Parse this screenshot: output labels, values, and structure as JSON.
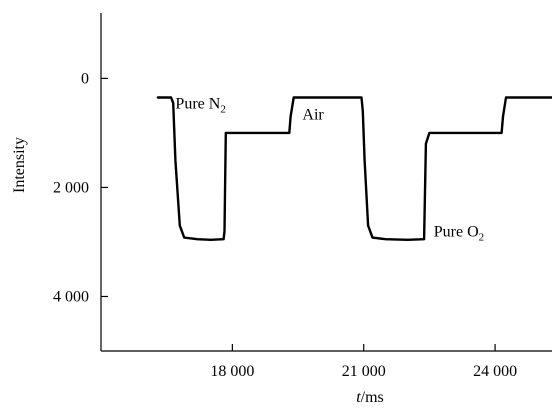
{
  "chart_data": {
    "type": "line",
    "title": "",
    "xlabel_italic": "t",
    "xlabel_unit": "/ms",
    "ylabel": "Intensity",
    "xlim": [
      15000,
      25300
    ],
    "ylim": [
      -1200,
      5000
    ],
    "y_inverted": true,
    "xticks": [
      18000,
      21000,
      24000
    ],
    "xtick_labels": [
      "18 000",
      "21 000",
      "24 000"
    ],
    "yticks": [
      0,
      2000,
      4000
    ],
    "ytick_labels": [
      "0",
      "2 000",
      "4 000"
    ],
    "grid": false,
    "legend": "none",
    "line_color": "#000000",
    "series": [
      {
        "x": [
          16300,
          16600,
          16650,
          16700,
          16800,
          16900,
          17200,
          17500,
          17800,
          17820,
          17850,
          17900,
          18200,
          18700,
          19300,
          19330,
          19400,
          19800,
          20400,
          20950,
          20980,
          21020,
          21100,
          21200,
          21500,
          22000,
          22380,
          22420,
          22500,
          23000,
          23600,
          24150,
          24180,
          24250,
          24800,
          25300
        ],
        "y": [
          350,
          350,
          450,
          1500,
          2700,
          2920,
          2950,
          2960,
          2950,
          2800,
          1000,
          1000,
          1000,
          1000,
          1000,
          700,
          350,
          350,
          350,
          350,
          600,
          1500,
          2700,
          2920,
          2950,
          2960,
          2950,
          1200,
          1000,
          1000,
          1000,
          1000,
          700,
          350,
          350,
          350
        ]
      }
    ],
    "annotations": [
      {
        "text": "Pure N",
        "sub": "2",
        "x": 16700,
        "y": 550
      },
      {
        "text": "Air",
        "sub": "",
        "x": 19600,
        "y": 750
      },
      {
        "text": "Pure O",
        "sub": "2",
        "x": 22600,
        "y": 2900
      }
    ]
  }
}
